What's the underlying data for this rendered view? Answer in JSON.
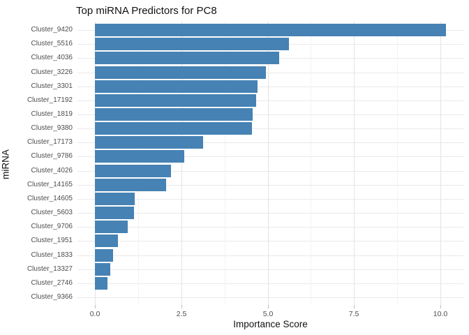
{
  "title": "Top miRNA Predictors for PC8",
  "colors": {
    "bar": "#4682B4",
    "grid_major": "#e4e4e4",
    "grid_minor": "#f2f2f2",
    "grid_row": "#e9e9e9",
    "tick": "#bdbdbd",
    "axis_text": "#4d4d4d",
    "title_text": "#111111"
  },
  "chart_data": {
    "type": "bar",
    "orientation": "horizontal",
    "title": "Top miRNA Predictors for PC8",
    "xlabel": "Importance Score",
    "ylabel": "miRNA",
    "xlim": [
      -0.5,
      10.67
    ],
    "x_major_ticks": [
      0.0,
      2.5,
      5.0,
      7.5,
      10.0
    ],
    "x_tick_labels": [
      "0.0",
      "2.5",
      "5.0",
      "7.5",
      "10.0"
    ],
    "x_minor_ticks": [
      1.25,
      3.75,
      6.25,
      8.75
    ],
    "grid": true,
    "legend": false,
    "categories": [
      "Cluster_9420",
      "Cluster_5516",
      "Cluster_4036",
      "Cluster_3226",
      "Cluster_3301",
      "Cluster_17192",
      "Cluster_1819",
      "Cluster_9380",
      "Cluster_17173",
      "Cluster_9786",
      "Cluster_4026",
      "Cluster_14165",
      "Cluster_14605",
      "Cluster_5603",
      "Cluster_9706",
      "Cluster_1951",
      "Cluster_1833",
      "Cluster_13327",
      "Cluster_2746",
      "Cluster_9366"
    ],
    "values": [
      10.16,
      5.62,
      5.34,
      4.95,
      4.7,
      4.66,
      4.56,
      4.55,
      3.13,
      2.59,
      2.21,
      2.07,
      1.16,
      1.13,
      0.95,
      0.67,
      0.52,
      0.44,
      0.36,
      0.0
    ]
  }
}
